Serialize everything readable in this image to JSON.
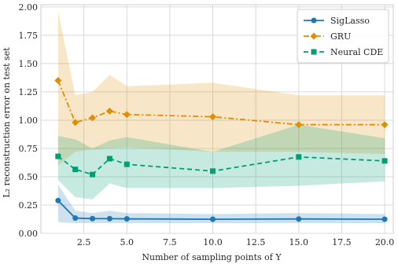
{
  "chart_data": {
    "type": "line",
    "title": "",
    "xlabel": "Number of sampling points of Y",
    "ylabel": "L₂ reconstruction error on test set",
    "xlim": [
      0.0,
      20.5
    ],
    "ylim": [
      0.0,
      2.02
    ],
    "x_ticks": [
      2.5,
      5.0,
      7.5,
      10.0,
      12.5,
      15.0,
      17.5,
      20.0
    ],
    "x_tick_labels": [
      "2.5",
      "5.0",
      "7.5",
      "10.0",
      "12.5",
      "15.0",
      "17.5",
      "20.0"
    ],
    "y_ticks": [
      0.0,
      0.25,
      0.5,
      0.75,
      1.0,
      1.25,
      1.5,
      1.75,
      2.0
    ],
    "y_tick_labels": [
      "0.00",
      "0.25",
      "0.50",
      "0.75",
      "1.00",
      "1.25",
      "1.50",
      "1.75",
      "2.00"
    ],
    "grid": true,
    "legend_position": "top-right",
    "series": [
      {
        "name": "SigLasso",
        "color": "#1f77b4",
        "line_style": "solid",
        "marker": "circle",
        "x": [
          1,
          2,
          3,
          4,
          5,
          10,
          15,
          20
        ],
        "y": [
          0.29,
          0.135,
          0.13,
          0.13,
          0.128,
          0.125,
          0.127,
          0.125
        ],
        "band_low": [
          0.1,
          0.09,
          0.09,
          0.09,
          0.09,
          0.09,
          0.09,
          0.09
        ],
        "band_high": [
          0.43,
          0.2,
          0.18,
          0.2,
          0.18,
          0.17,
          0.18,
          0.17
        ]
      },
      {
        "name": "GRU",
        "color": "#de8f05",
        "line_style": "dashdot",
        "marker": "diamond",
        "x": [
          1,
          2,
          3,
          4,
          5,
          10,
          15,
          20
        ],
        "y": [
          1.35,
          0.98,
          1.02,
          1.08,
          1.05,
          1.03,
          0.96,
          0.96
        ],
        "band_low": [
          0.6,
          0.72,
          0.74,
          0.75,
          0.76,
          0.72,
          0.72,
          0.7
        ],
        "band_high": [
          1.96,
          1.22,
          1.25,
          1.4,
          1.3,
          1.33,
          1.22,
          1.22
        ]
      },
      {
        "name": "Neural CDE",
        "color": "#029e73",
        "line_style": "dashed",
        "marker": "square",
        "x": [
          1,
          2,
          3,
          4,
          5,
          10,
          15,
          20
        ],
        "y": [
          0.68,
          0.565,
          0.52,
          0.66,
          0.61,
          0.55,
          0.675,
          0.64
        ],
        "band_low": [
          0.47,
          0.32,
          0.3,
          0.44,
          0.4,
          0.4,
          0.42,
          0.46
        ],
        "band_high": [
          0.86,
          0.83,
          0.75,
          0.82,
          0.85,
          0.72,
          0.96,
          0.84
        ]
      }
    ]
  }
}
